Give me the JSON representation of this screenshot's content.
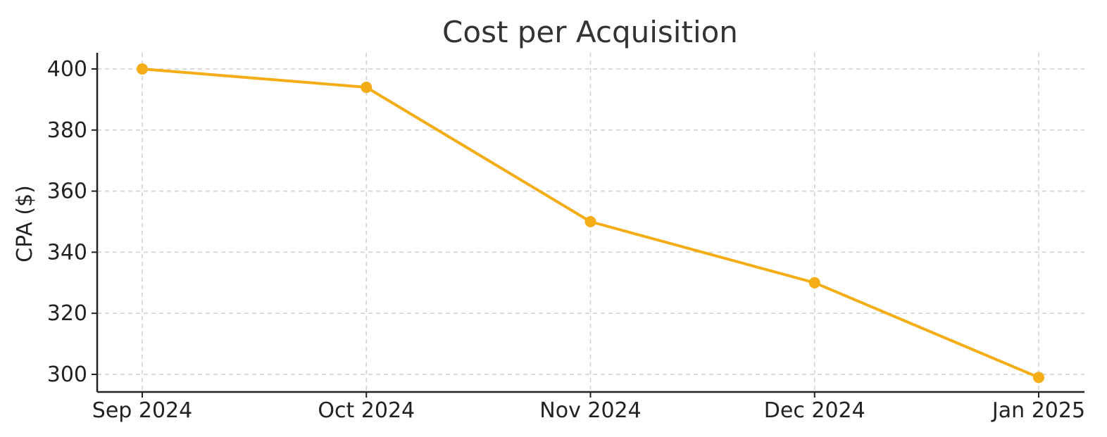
{
  "chart_data": {
    "type": "line",
    "title": "Cost per Acquisition",
    "xlabel": "",
    "ylabel": "CPA ($)",
    "categories": [
      "Sep 2024",
      "Oct 2024",
      "Nov 2024",
      "Dec 2024",
      "Jan 2025"
    ],
    "series": [
      {
        "values": [
          400,
          394,
          350,
          330,
          299
        ],
        "color": "#f4ad16"
      }
    ],
    "ylim": [
      295,
      405
    ],
    "yticks": [
      300,
      320,
      340,
      360,
      380,
      400
    ],
    "grid": true,
    "legend": "none"
  }
}
